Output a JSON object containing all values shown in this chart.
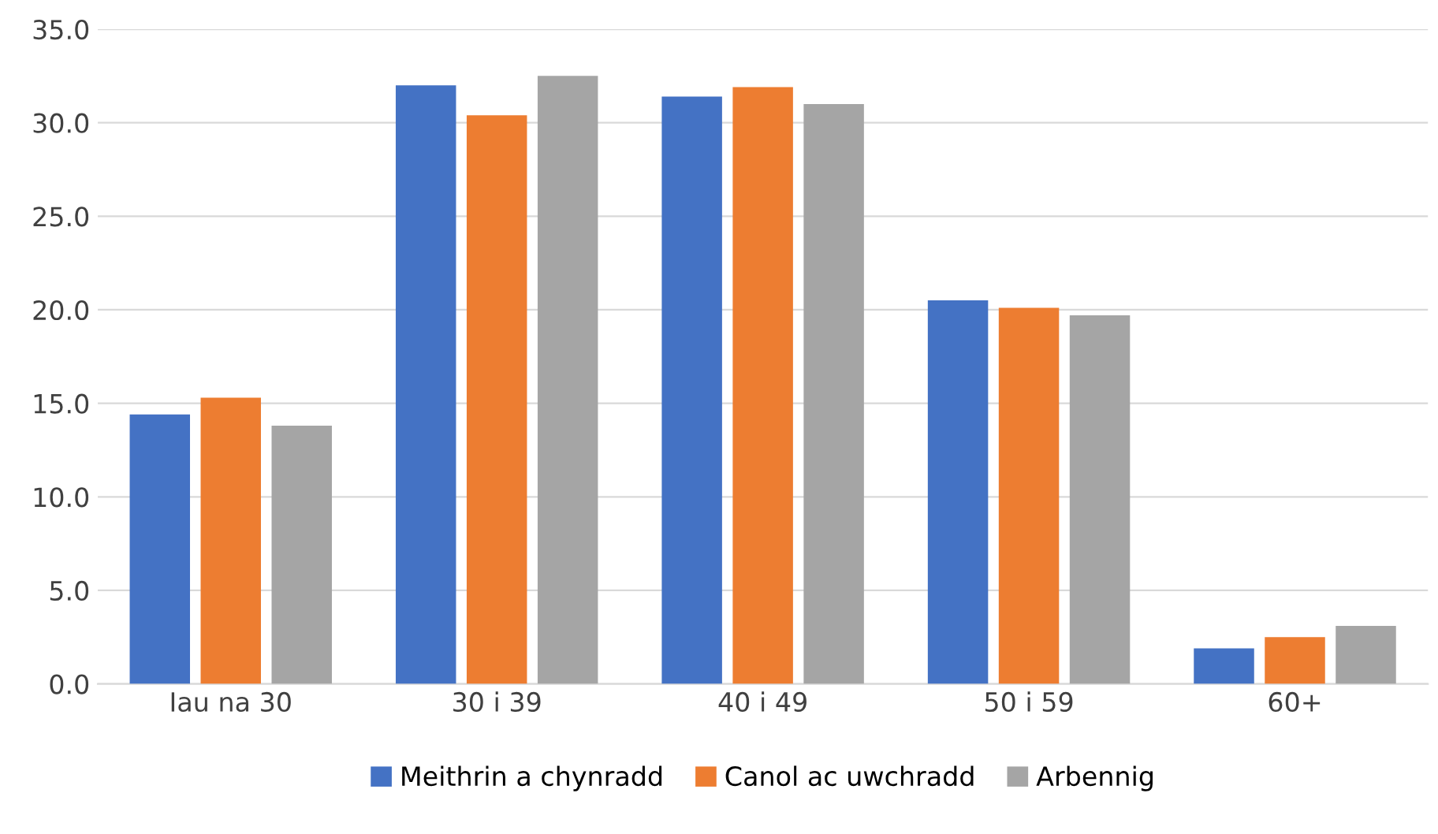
{
  "chart_data": {
    "type": "bar",
    "categories": [
      "Iau na 30",
      "30 i 39",
      "40 i 49",
      "50 i 59",
      "60+"
    ],
    "series": [
      {
        "name": "Meithrin a chynradd",
        "color": "#4472c4",
        "values": [
          14.4,
          32.0,
          31.4,
          20.5,
          1.9
        ]
      },
      {
        "name": "Canol ac uwchradd",
        "color": "#ed7d31",
        "values": [
          15.3,
          30.4,
          31.9,
          20.1,
          2.5
        ]
      },
      {
        "name": "Arbennig",
        "color": "#a5a5a5",
        "values": [
          13.8,
          32.5,
          31.0,
          19.7,
          3.1
        ]
      }
    ],
    "ylim": [
      0,
      35
    ],
    "yticks": [
      {
        "value": 0,
        "label": "0.0"
      },
      {
        "value": 5,
        "label": "5.0"
      },
      {
        "value": 10,
        "label": "10.0"
      },
      {
        "value": 15,
        "label": "15.0"
      },
      {
        "value": 20,
        "label": "20.0"
      },
      {
        "value": 25,
        "label": "25.0"
      },
      {
        "value": 30,
        "label": "30.0"
      },
      {
        "value": 35,
        "label": "35.0"
      }
    ],
    "grid": "y",
    "legend": "bottom"
  }
}
